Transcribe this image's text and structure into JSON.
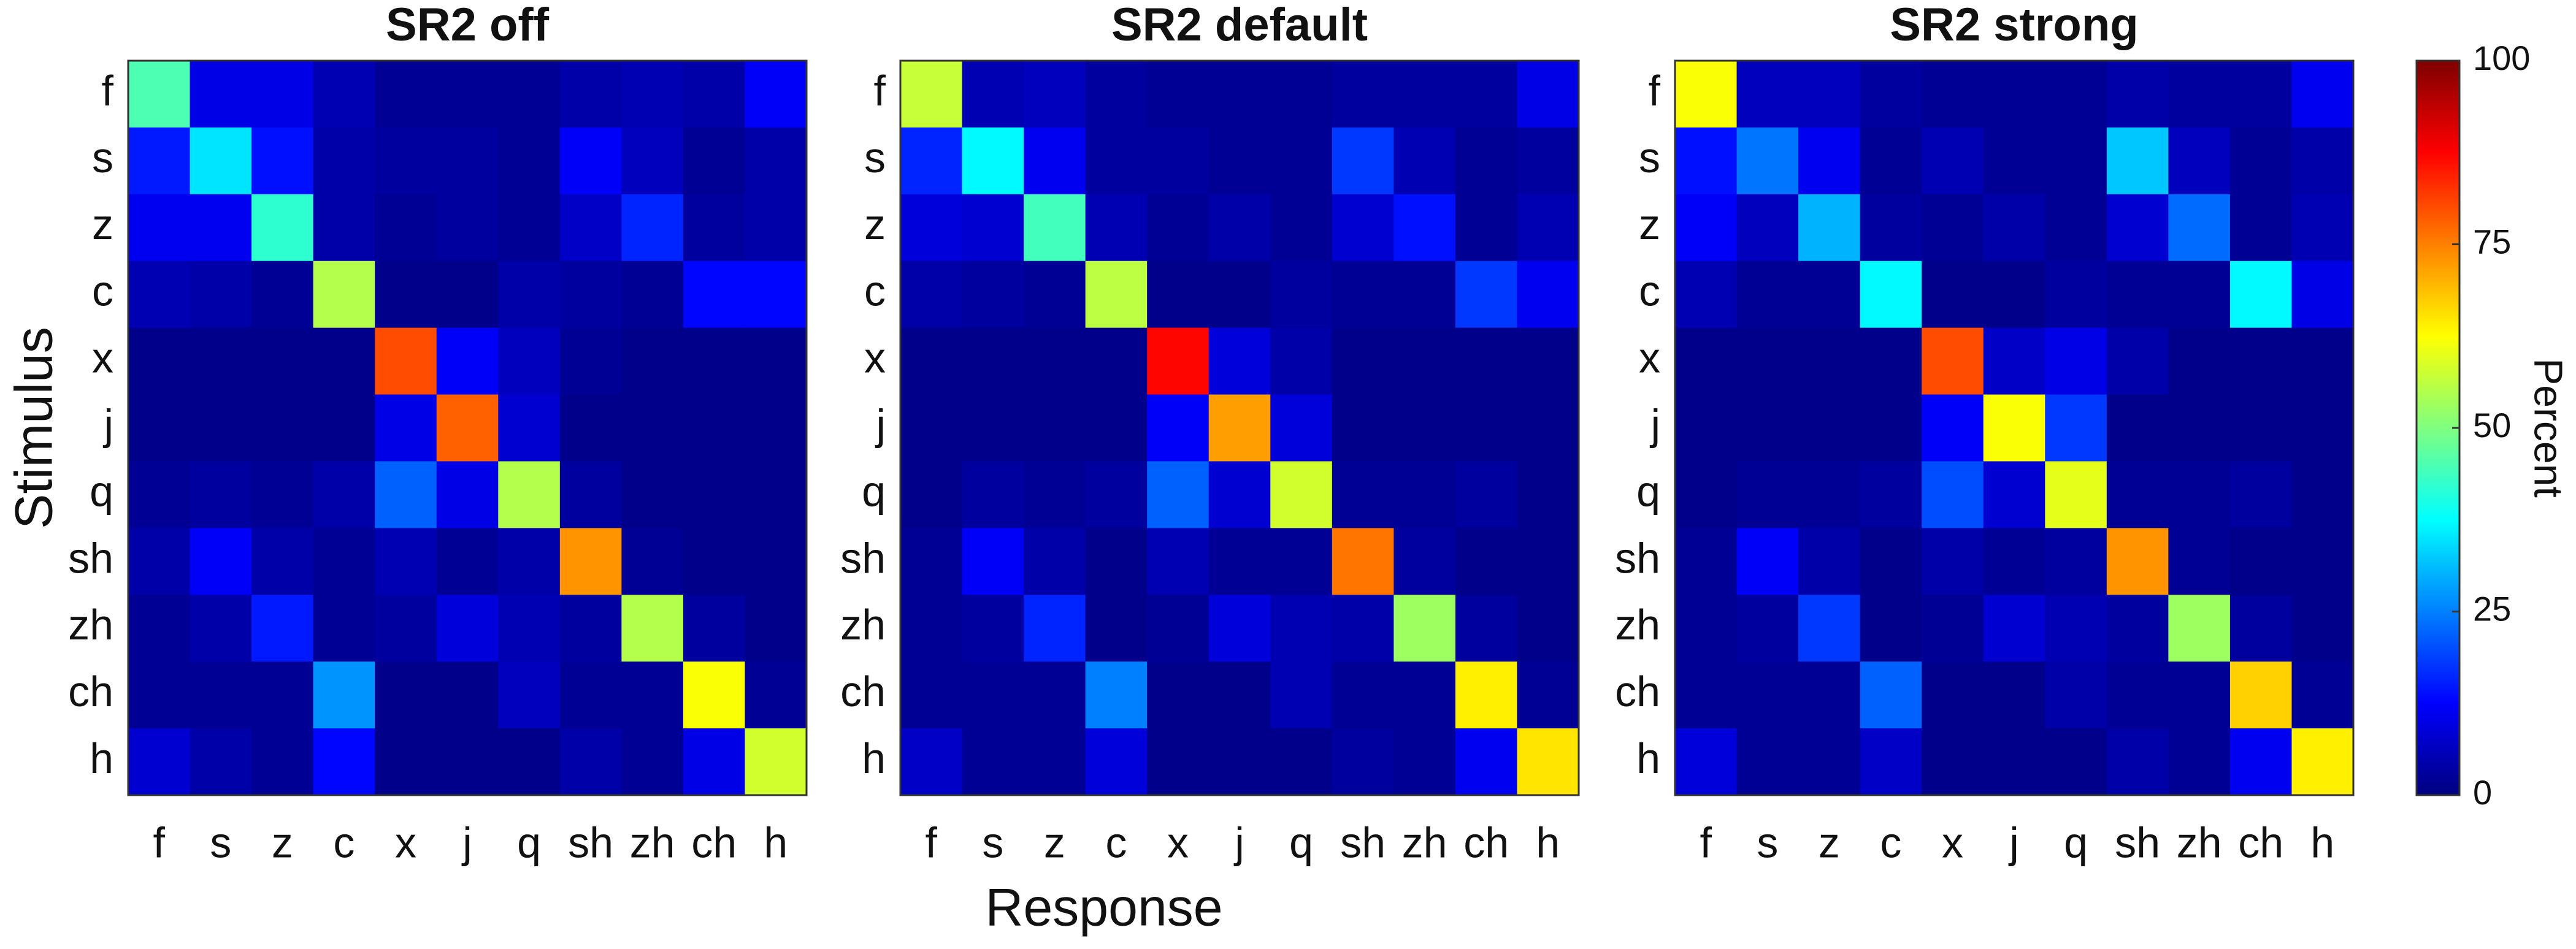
{
  "chart_data": {
    "type": "heatmap",
    "xlabel": "Response",
    "ylabel": "Stimulus",
    "categories": [
      "f",
      "s",
      "z",
      "c",
      "x",
      "j",
      "q",
      "sh",
      "zh",
      "ch",
      "h"
    ],
    "colormap": "jet",
    "colorbar": {
      "label": "Percent",
      "lim": [
        0,
        100
      ],
      "ticks": [
        0,
        25,
        50,
        75,
        100
      ]
    },
    "panels": [
      {
        "title": "SR2 off",
        "values": [
          [
            45,
            10,
            10,
            5,
            2,
            2,
            2,
            4,
            5,
            4,
            12
          ],
          [
            15,
            35,
            14,
            4,
            3,
            3,
            2,
            12,
            6,
            2,
            4
          ],
          [
            11,
            11,
            42,
            4,
            2,
            3,
            2,
            7,
            16,
            3,
            4
          ],
          [
            5,
            4,
            2,
            55,
            1,
            1,
            4,
            3,
            2,
            13,
            13
          ],
          [
            1,
            1,
            1,
            1,
            80,
            12,
            6,
            2,
            1,
            1,
            1
          ],
          [
            1,
            1,
            1,
            1,
            10,
            78,
            8,
            1,
            1,
            1,
            1
          ],
          [
            2,
            3,
            2,
            4,
            22,
            10,
            55,
            3,
            1,
            1,
            1
          ],
          [
            4,
            12,
            4,
            2,
            5,
            2,
            4,
            73,
            2,
            1,
            1
          ],
          [
            2,
            4,
            15,
            2,
            3,
            9,
            5,
            3,
            55,
            3,
            1
          ],
          [
            2,
            2,
            2,
            27,
            1,
            1,
            6,
            2,
            2,
            62,
            2
          ],
          [
            8,
            4,
            2,
            13,
            1,
            1,
            1,
            4,
            2,
            10,
            58
          ]
        ]
      },
      {
        "title": "SR2 default",
        "values": [
          [
            57,
            5,
            6,
            3,
            2,
            2,
            2,
            3,
            3,
            3,
            10
          ],
          [
            16,
            37,
            11,
            3,
            3,
            2,
            2,
            18,
            5,
            2,
            3
          ],
          [
            9,
            8,
            44,
            5,
            2,
            4,
            2,
            8,
            14,
            2,
            5
          ],
          [
            4,
            3,
            2,
            56,
            1,
            1,
            3,
            2,
            2,
            18,
            11
          ],
          [
            1,
            1,
            1,
            1,
            87,
            9,
            4,
            1,
            1,
            1,
            1
          ],
          [
            1,
            1,
            1,
            1,
            12,
            72,
            9,
            1,
            1,
            1,
            1
          ],
          [
            1,
            3,
            2,
            3,
            22,
            8,
            58,
            2,
            2,
            3,
            1
          ],
          [
            2,
            12,
            4,
            1,
            5,
            2,
            2,
            76,
            3,
            1,
            1
          ],
          [
            2,
            3,
            16,
            1,
            2,
            9,
            5,
            4,
            53,
            3,
            1
          ],
          [
            2,
            2,
            2,
            25,
            1,
            1,
            5,
            2,
            2,
            64,
            2
          ],
          [
            7,
            2,
            2,
            9,
            1,
            1,
            1,
            3,
            2,
            11,
            65
          ]
        ]
      },
      {
        "title": "SR2 strong",
        "values": [
          [
            62,
            6,
            6,
            3,
            2,
            2,
            2,
            4,
            3,
            3,
            11
          ],
          [
            14,
            24,
            11,
            2,
            5,
            2,
            2,
            32,
            6,
            2,
            4
          ],
          [
            12,
            6,
            30,
            3,
            2,
            4,
            2,
            8,
            23,
            2,
            5
          ],
          [
            5,
            2,
            2,
            37,
            1,
            1,
            3,
            2,
            2,
            37,
            10
          ],
          [
            1,
            1,
            1,
            1,
            80,
            7,
            10,
            4,
            1,
            1,
            1
          ],
          [
            1,
            1,
            1,
            1,
            12,
            62,
            18,
            1,
            1,
            1,
            1
          ],
          [
            1,
            2,
            2,
            3,
            20,
            8,
            60,
            2,
            2,
            3,
            1
          ],
          [
            2,
            12,
            4,
            1,
            4,
            2,
            3,
            73,
            2,
            1,
            1
          ],
          [
            2,
            3,
            18,
            1,
            2,
            8,
            5,
            3,
            53,
            3,
            1
          ],
          [
            2,
            2,
            2,
            22,
            1,
            1,
            4,
            2,
            2,
            67,
            2
          ],
          [
            9,
            2,
            2,
            7,
            1,
            1,
            1,
            4,
            2,
            11,
            64
          ]
        ]
      }
    ]
  }
}
